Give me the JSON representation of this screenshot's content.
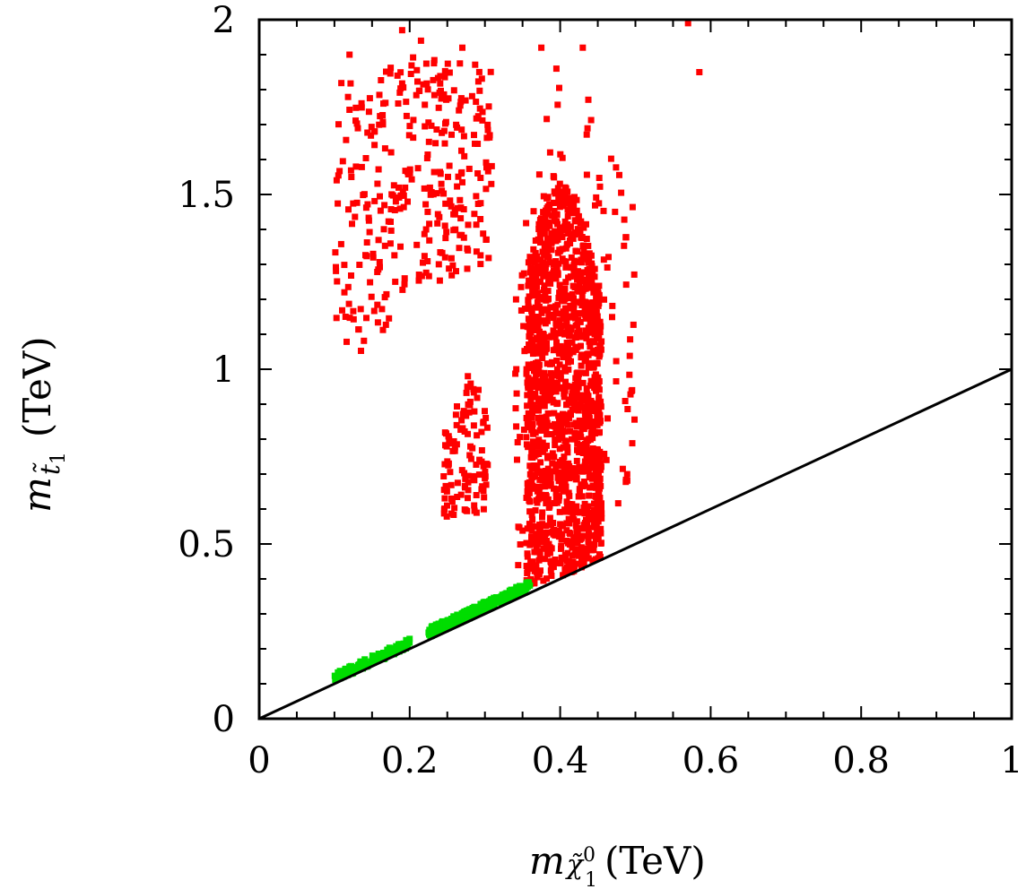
{
  "chart_data": {
    "type": "scatter",
    "title": "",
    "xlabel": {
      "symbol": "m",
      "subscript": "χ̃",
      "subscript_index": "1",
      "subscript_sup": "0",
      "unit": "(TeV)"
    },
    "ylabel": {
      "symbol": "m",
      "subscript": "t̃",
      "subscript_index": "1",
      "unit": "(TeV)"
    },
    "xlim": [
      0,
      1
    ],
    "ylim": [
      0,
      2
    ],
    "xticks": [
      {
        "value": 0,
        "label": "0"
      },
      {
        "value": 0.2,
        "label": "0.2"
      },
      {
        "value": 0.4,
        "label": "0.4"
      },
      {
        "value": 0.6,
        "label": "0.6"
      },
      {
        "value": 0.8,
        "label": "0.8"
      },
      {
        "value": 1,
        "label": "1"
      }
    ],
    "yticks": [
      {
        "value": 0,
        "label": "0"
      },
      {
        "value": 0.5,
        "label": "0.5"
      },
      {
        "value": 1,
        "label": "1"
      },
      {
        "value": 1.5,
        "label": "1.5"
      },
      {
        "value": 2,
        "label": "2"
      }
    ],
    "grid": false,
    "legend": "none",
    "reference_line": {
      "name": "m_stop = m_neutralino",
      "x": [
        0,
        1
      ],
      "y": [
        0,
        1
      ],
      "color": "#000000"
    },
    "series": [
      {
        "name": "red points",
        "color": "#ff0000",
        "regions": [
          {
            "name": "upper-left cluster",
            "count": 330,
            "x": [
              0.1,
              0.31
            ],
            "y_by_x": [
              [
                0.1,
                1.04,
                1.82
              ],
              [
                0.15,
                1.05,
                1.85
              ],
              [
                0.2,
                1.25,
                1.9
              ],
              [
                0.25,
                1.25,
                1.88
              ],
              [
                0.3,
                1.3,
                1.87
              ]
            ]
          },
          {
            "name": "mid island",
            "count": 110,
            "x": [
              0.245,
              0.305
            ],
            "y_by_x": [
              [
                0.245,
                0.57,
                0.83
              ],
              [
                0.275,
                0.58,
                1.0
              ],
              [
                0.305,
                0.6,
                0.92
              ]
            ]
          },
          {
            "name": "main band",
            "count": 1400,
            "x": [
              0.355,
              0.455
            ],
            "y_by_x": [
              [
                0.355,
                0.38,
                1.3
              ],
              [
                0.39,
                0.4,
                1.55
              ],
              [
                0.42,
                0.42,
                1.5
              ],
              [
                0.455,
                0.46,
                1.22
              ]
            ]
          },
          {
            "name": "main band spread",
            "count": 180,
            "x": [
              0.34,
              0.5
            ],
            "y_by_x": [
              [
                0.34,
                0.4,
                1.3
              ],
              [
                0.4,
                0.45,
                1.9
              ],
              [
                0.45,
                0.46,
                1.75
              ],
              [
                0.5,
                0.7,
                1.5
              ]
            ]
          }
        ],
        "points": [
          [
            0.57,
            1.99
          ],
          [
            0.585,
            1.85
          ],
          [
            0.19,
            1.97
          ],
          [
            0.12,
            1.9
          ],
          [
            0.215,
            1.94
          ],
          [
            0.27,
            1.92
          ],
          [
            0.375,
            1.92
          ],
          [
            0.43,
            1.92
          ],
          [
            0.395,
            1.86
          ]
        ]
      },
      {
        "name": "green points",
        "color": "#00dd00",
        "regions": [
          {
            "name": "low segment",
            "count": 120,
            "x": [
              0.1,
              0.2
            ],
            "y_offset": [
              0.005,
              0.03
            ]
          },
          {
            "name": "upper segment",
            "count": 320,
            "x": [
              0.225,
              0.36
            ],
            "y_offset": [
              0.008,
              0.035
            ]
          }
        ],
        "points": []
      }
    ]
  }
}
